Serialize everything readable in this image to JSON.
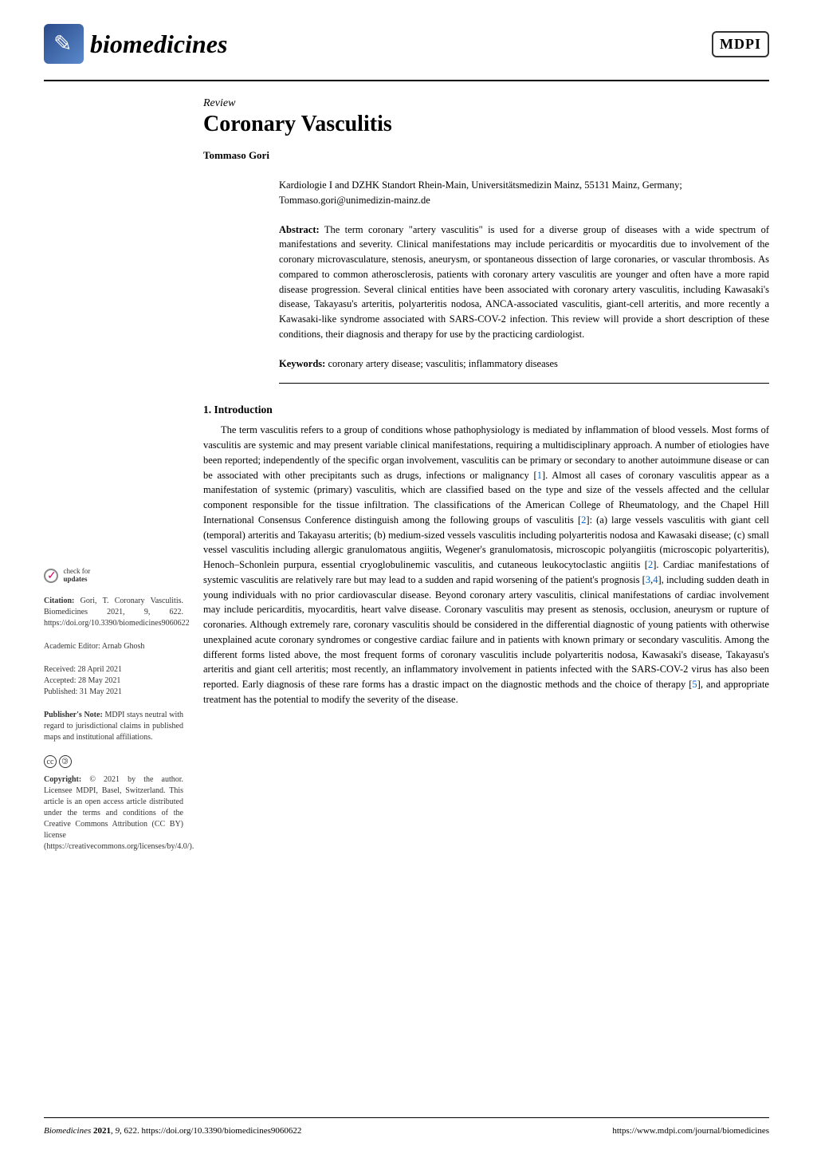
{
  "header": {
    "journal_name": "biomedicines",
    "publisher_logo": "MDPI"
  },
  "article": {
    "type": "Review",
    "title": "Coronary Vasculitis",
    "author": "Tommaso Gori",
    "affiliation": "Kardiologie I and DZHK Standort Rhein-Main, Universitätsmedizin Mainz, 55131 Mainz, Germany; Tommaso.gori@unimedizin-mainz.de",
    "abstract_label": "Abstract:",
    "abstract": "The term coronary \"artery vasculitis\" is used for a diverse group of diseases with a wide spectrum of manifestations and severity. Clinical manifestations may include pericarditis or myocarditis due to involvement of the coronary microvasculature, stenosis, aneurysm, or spontaneous dissection of large coronaries, or vascular thrombosis. As compared to common atherosclerosis, patients with coronary artery vasculitis are younger and often have a more rapid disease progression. Several clinical entities have been associated with coronary artery vasculitis, including Kawasaki's disease, Takayasu's arteritis, polyarteritis nodosa, ANCA-associated vasculitis, giant-cell arteritis, and more recently a Kawasaki-like syndrome associated with SARS-COV-2 infection. This review will provide a short description of these conditions, their diagnosis and therapy for use by the practicing cardiologist.",
    "keywords_label": "Keywords:",
    "keywords": "coronary artery disease; vasculitis; inflammatory diseases"
  },
  "sidebar": {
    "check_updates_line1": "check for",
    "check_updates_line2": "updates",
    "citation_label": "Citation:",
    "citation": "Gori, T. Coronary Vasculitis. Biomedicines 2021, 9, 622. https://doi.org/10.3390/biomedicines9060622",
    "editor_label": "Academic Editor:",
    "editor": "Arnab Ghosh",
    "received": "Received: 28 April 2021",
    "accepted": "Accepted: 28 May 2021",
    "published": "Published: 31 May 2021",
    "publisher_note_label": "Publisher's Note:",
    "publisher_note": "MDPI stays neutral with regard to jurisdictional claims in published maps and institutional affiliations.",
    "copyright_label": "Copyright:",
    "copyright": "© 2021 by the author. Licensee MDPI, Basel, Switzerland. This article is an open access article distributed under the terms and conditions of the Creative Commons Attribution (CC BY) license (https://creativecommons.org/licenses/by/4.0/)."
  },
  "section": {
    "heading": "1. Introduction",
    "body_part1": "The term vasculitis refers to a group of conditions whose pathophysiology is mediated by inflammation of blood vessels. Most forms of vasculitis are systemic and may present variable clinical manifestations, requiring a multidisciplinary approach. A number of etiologies have been reported; independently of the specific organ involvement, vasculitis can be primary or secondary to another autoimmune disease or can be associated with other precipitants such as drugs, infections or malignancy [",
    "ref1": "1",
    "body_part2": "]. Almost all cases of coronary vasculitis appear as a manifestation of systemic (primary) vasculitis, which are classified based on the type and size of the vessels affected and the cellular component responsible for the tissue infiltration. The classifications of the American College of Rheumatology, and the Chapel Hill International Consensus Conference distinguish among the following groups of vasculitis [",
    "ref2": "2",
    "body_part3": "]: (a) large vessels vasculitis with giant cell (temporal) arteritis and Takayasu arteritis; (b) medium-sized vessels vasculitis including polyarteritis nodosa and Kawasaki disease; (c) small vessel vasculitis including allergic granulomatous angiitis, Wegener's granulomatosis, microscopic polyangiitis (microscopic polyarteritis), Henoch–Schonlein purpura, essential cryoglobulinemic vasculitis, and cutaneous leukocytoclastic angiitis [",
    "ref2b": "2",
    "body_part4": "]. Cardiac manifestations of systemic vasculitis are relatively rare but may lead to a sudden and rapid worsening of the patient's prognosis [",
    "ref3": "3",
    "ref4": "4",
    "body_part5": "], including sudden death in young individuals with no prior cardiovascular disease. Beyond coronary artery vasculitis, clinical manifestations of cardiac involvement may include pericarditis, myocarditis, heart valve disease. Coronary vasculitis may present as stenosis, occlusion, aneurysm or rupture of coronaries. Although extremely rare, coronary vasculitis should be considered in the differential diagnostic of young patients with otherwise unexplained acute coronary syndromes or congestive cardiac failure and in patients with known primary or secondary vasculitis. Among the different forms listed above, the most frequent forms of coronary vasculitis include polyarteritis nodosa, Kawasaki's disease, Takayasu's arteritis and giant cell arteritis; most recently, an inflammatory involvement in patients infected with the SARS-COV-2 virus has also been reported. Early diagnosis of these rare forms has a drastic impact on the diagnostic methods and the choice of therapy [",
    "ref5": "5",
    "body_part6": "], and appropriate treatment has the potential to modify the severity of the disease."
  },
  "footer": {
    "left": "Biomedicines 2021, 9, 622. https://doi.org/10.3390/biomedicines9060622",
    "right": "https://www.mdpi.com/journal/biomedicines"
  },
  "colors": {
    "text": "#000000",
    "link": "#0066cc",
    "background": "#ffffff",
    "icon_gradient_start": "#2a4a8a",
    "icon_gradient_end": "#5a8acc"
  },
  "typography": {
    "body_font": "Palatino Linotype",
    "title_size_pt": 21,
    "body_size_pt": 9.5,
    "sidebar_size_pt": 7.5
  }
}
